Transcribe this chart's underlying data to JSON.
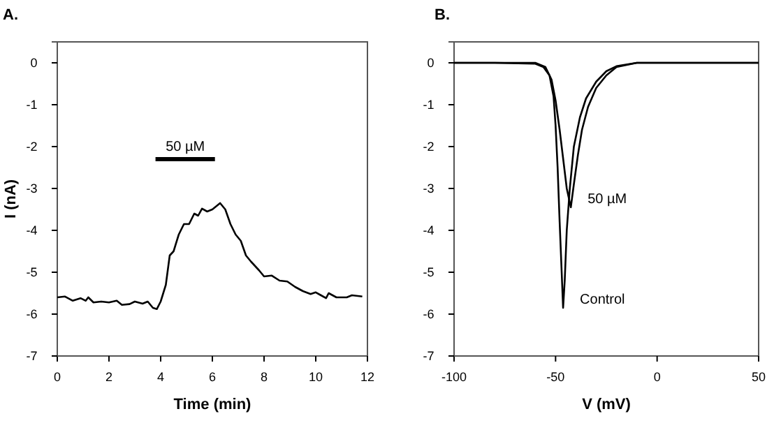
{
  "chart_data": [
    {
      "type": "line",
      "title": "A.",
      "xlabel": "Time (min)",
      "ylabel": "I (nA)",
      "xlim": [
        0,
        12
      ],
      "xticks": [
        0,
        2,
        4,
        6,
        8,
        10,
        12
      ],
      "ylim": [
        -7,
        0.5
      ],
      "yticks": [
        -7,
        -6,
        -5,
        -4,
        -3,
        -2,
        -1,
        0
      ],
      "annotations": [
        {
          "text": "50 µM",
          "x": 4.95,
          "y": -2.3
        }
      ],
      "series": [
        {
          "color": "#000000",
          "x": [
            0,
            0.3,
            0.6,
            0.9,
            1.1,
            1.2,
            1.4,
            1.7,
            2,
            2.3,
            2.5,
            2.8,
            3.0,
            3.3,
            3.5,
            3.7,
            3.85,
            4.0,
            4.2,
            4.35,
            4.5,
            4.7,
            4.9,
            5.1,
            5.3,
            5.45,
            5.6,
            5.8,
            6.0,
            6.3,
            6.5,
            6.7,
            6.9,
            7.1,
            7.3,
            7.5,
            7.8,
            8.0,
            8.3,
            8.6,
            8.9,
            9.2,
            9.5,
            9.8,
            10.0,
            10.2,
            10.4,
            10.5,
            10.8,
            11.2,
            11.4,
            11.8
          ],
          "values": [
            -5.6,
            -5.58,
            -5.68,
            -5.62,
            -5.68,
            -5.6,
            -5.72,
            -5.7,
            -5.72,
            -5.68,
            -5.78,
            -5.76,
            -5.7,
            -5.75,
            -5.7,
            -5.85,
            -5.88,
            -5.7,
            -5.3,
            -4.6,
            -4.5,
            -4.1,
            -3.85,
            -3.85,
            -3.6,
            -3.65,
            -3.48,
            -3.55,
            -3.5,
            -3.35,
            -3.5,
            -3.85,
            -4.1,
            -4.25,
            -4.6,
            -4.75,
            -4.95,
            -5.1,
            -5.08,
            -5.2,
            -5.22,
            -5.35,
            -5.45,
            -5.52,
            -5.48,
            -5.55,
            -5.62,
            -5.5,
            -5.6,
            -5.6,
            -5.55,
            -5.58
          ]
        },
        {
          "color": "#000000",
          "x": [
            3.8,
            6.1
          ],
          "values": [
            -2.3,
            -2.3
          ]
        }
      ]
    },
    {
      "type": "line",
      "title": "B.",
      "xlabel": "V (mV)",
      "xlim": [
        -100,
        50
      ],
      "xticks": [
        -100,
        -50,
        0,
        50
      ],
      "ylim": [
        -7,
        0.5
      ],
      "yticks": [
        -7,
        -6,
        -5,
        -4,
        -3,
        -2,
        -1,
        0
      ],
      "series": [
        {
          "name": "Control",
          "color": "#000000",
          "x": [
            -100,
            -80,
            -60,
            -56,
            -53,
            -51,
            -50,
            -49,
            -48,
            -47,
            -46.3,
            -45.5,
            -44.5,
            -43,
            -41,
            -38,
            -35,
            -30,
            -25,
            -20,
            -10,
            0,
            50
          ],
          "values": [
            0,
            0,
            -0.02,
            -0.1,
            -0.3,
            -0.8,
            -1.5,
            -2.5,
            -3.8,
            -5,
            -5.85,
            -5.2,
            -4,
            -3,
            -2,
            -1.3,
            -0.85,
            -0.45,
            -0.2,
            -0.08,
            0,
            0,
            0
          ]
        },
        {
          "name": "50 µM",
          "color": "#000000",
          "x": [
            -100,
            -60,
            -55,
            -52,
            -50,
            -48,
            -46,
            -44.5,
            -42.5,
            -41,
            -39,
            -37,
            -34,
            -30,
            -25,
            -20,
            -10,
            0,
            50
          ],
          "values": [
            0,
            0,
            -0.1,
            -0.4,
            -0.9,
            -1.6,
            -2.4,
            -3,
            -3.45,
            -2.9,
            -2.2,
            -1.6,
            -1.05,
            -0.6,
            -0.3,
            -0.1,
            0,
            0,
            0
          ]
        }
      ]
    }
  ]
}
